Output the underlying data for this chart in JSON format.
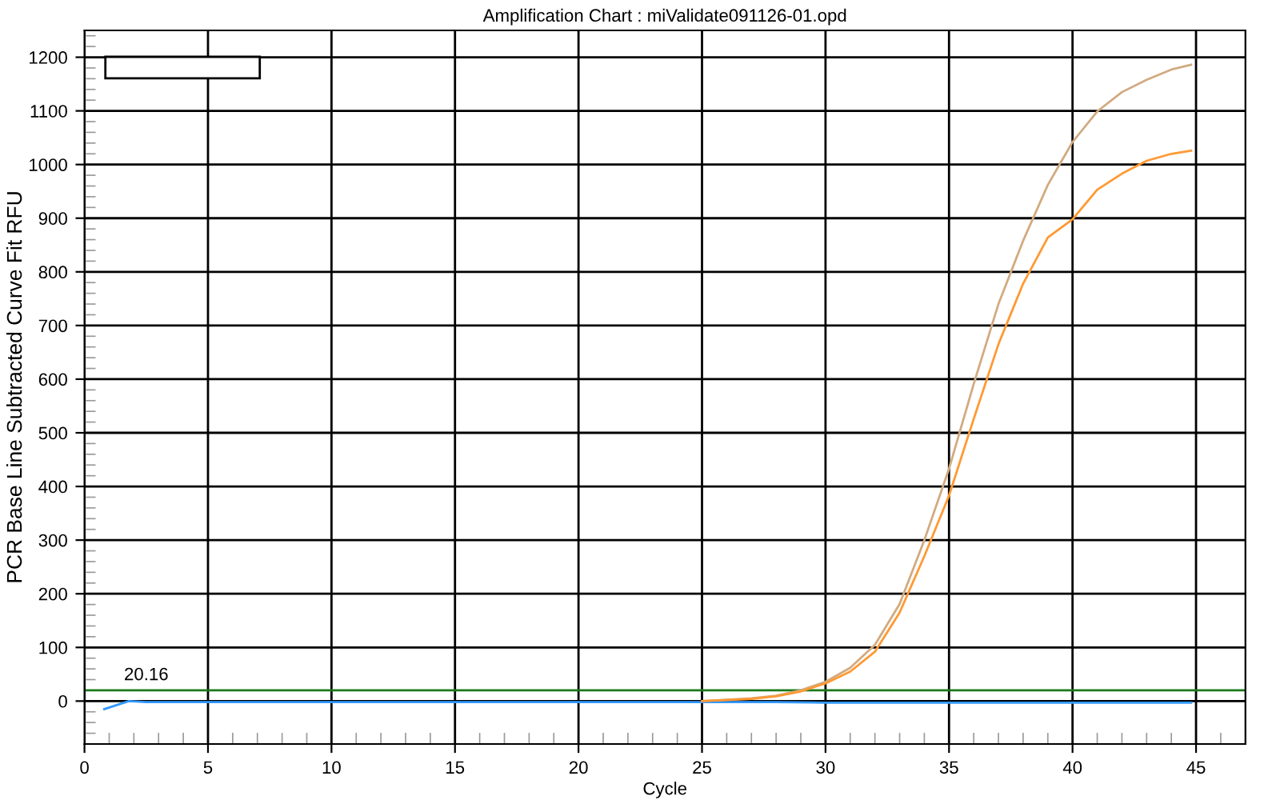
{
  "chart_data": {
    "type": "line",
    "title": "Amplification Chart : miValidate091126-01.opd",
    "xlabel": "Cycle",
    "ylabel": "PCR Base Line Subtracted Curve Fit RFU",
    "xlim": [
      0,
      47
    ],
    "ylim": [
      -80,
      1250
    ],
    "xticks": [
      0,
      5,
      10,
      15,
      20,
      25,
      30,
      35,
      40,
      45
    ],
    "yticks": [
      0,
      100,
      200,
      300,
      400,
      500,
      600,
      700,
      800,
      900,
      1000,
      1100,
      1200
    ],
    "grid": true,
    "marker": "none",
    "line_style": "solid",
    "ref_lines": [
      {
        "axis": "y",
        "value": 20.16,
        "label": "20.16",
        "color": "#1a7a1a"
      }
    ],
    "series": [
      {
        "color": "#3399ff",
        "x": [
          0.8,
          1.8,
          2.5,
          10,
          20,
          25,
          28,
          30,
          35,
          40,
          44.8
        ],
        "values": [
          -15,
          0,
          -2,
          -2,
          -2,
          -2,
          -2,
          -3,
          -3,
          -3,
          -3
        ]
      },
      {
        "color": "#d2aa80",
        "x": [
          25,
          27,
          28,
          29,
          30,
          31,
          32,
          33,
          34,
          35,
          36,
          37,
          38,
          39,
          40,
          41,
          42,
          43,
          44,
          44.8
        ],
        "values": [
          0,
          5,
          10,
          20,
          36,
          62,
          105,
          181,
          300,
          433,
          591,
          740,
          858,
          962,
          1042,
          1099,
          1135,
          1158,
          1177,
          1186
        ]
      },
      {
        "color": "#ff9933",
        "x": [
          25,
          27,
          28,
          29,
          30,
          31,
          32,
          33,
          34,
          35,
          36,
          37,
          38,
          39,
          40,
          41,
          42,
          43,
          44,
          44.8
        ],
        "values": [
          0,
          4,
          9,
          18,
          33,
          55,
          92,
          165,
          270,
          383,
          526,
          665,
          778,
          864,
          898,
          953,
          983,
          1007,
          1020,
          1026
        ]
      }
    ]
  }
}
